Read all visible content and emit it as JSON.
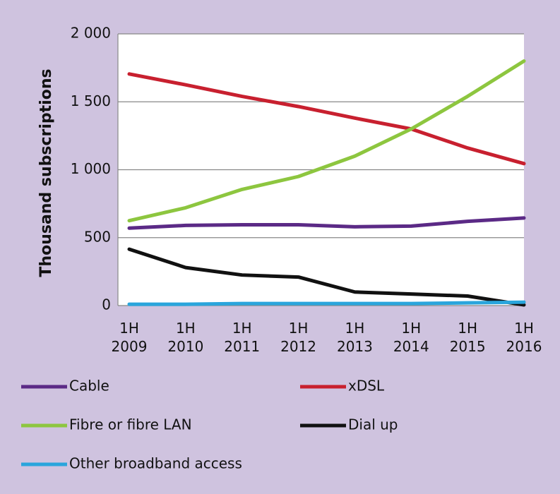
{
  "chart_data": {
    "type": "line",
    "y_label": "Thousand subscriptions",
    "categories": [
      "1H 2009",
      "1H 2010",
      "1H 2011",
      "1H 2012",
      "1H 2013",
      "1H 2014",
      "1H 2015",
      "1H 2016"
    ],
    "series": [
      {
        "name": "Cable",
        "color": "#5b2a86",
        "values": [
          570,
          590,
          595,
          595,
          580,
          585,
          620,
          645
        ]
      },
      {
        "name": "xDSL",
        "color": "#c8202f",
        "values": [
          1705,
          1625,
          1540,
          1465,
          1380,
          1300,
          1160,
          1045
        ]
      },
      {
        "name": "Fibre or fibre LAN",
        "color": "#8dc63f",
        "values": [
          625,
          720,
          855,
          950,
          1100,
          1300,
          1540,
          1800
        ]
      },
      {
        "name": "Dial up",
        "color": "#111111",
        "values": [
          415,
          280,
          225,
          210,
          100,
          85,
          70,
          5
        ]
      },
      {
        "name": "Other broadband access",
        "color": "#2aa5dc",
        "values": [
          10,
          10,
          15,
          15,
          15,
          15,
          20,
          25
        ]
      }
    ],
    "ylim": [
      0,
      2000
    ],
    "yticks": [
      0,
      500,
      {
        "value": 1000,
        "label": "1 000"
      },
      {
        "value": 1500,
        "label": "1 500"
      },
      {
        "value": 2000,
        "label": "2 000"
      }
    ],
    "grid": true
  }
}
